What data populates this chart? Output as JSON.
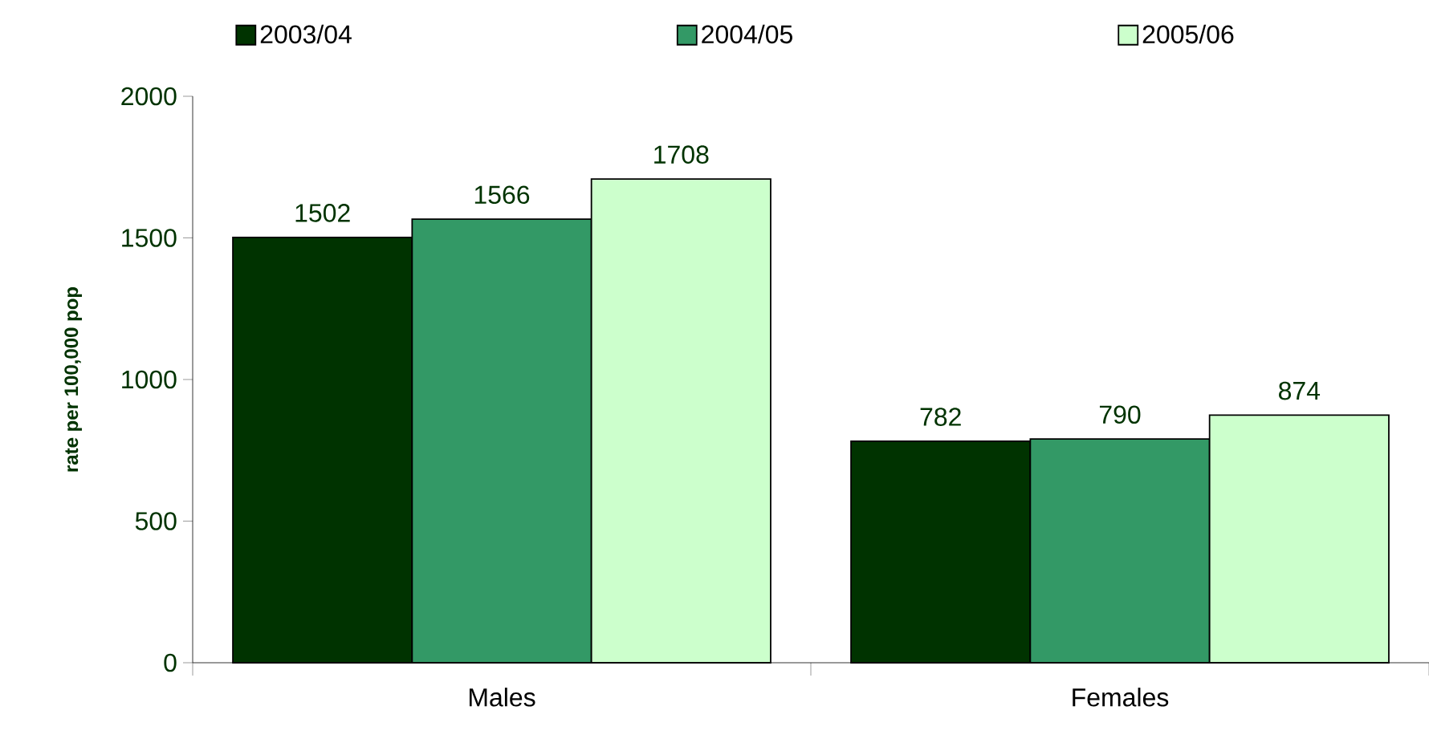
{
  "chart_data": {
    "type": "bar",
    "ylabel": "rate per 100,000 pop",
    "categories": [
      "Males",
      "Females"
    ],
    "series": [
      {
        "name": "2003/04",
        "color": "#003300",
        "values": [
          1502,
          782
        ]
      },
      {
        "name": "2004/05",
        "color": "#339966",
        "values": [
          1566,
          790
        ]
      },
      {
        "name": "2005/06",
        "color": "#ccffcc",
        "values": [
          1708,
          874
        ]
      }
    ],
    "ylim": [
      0,
      2000
    ],
    "yticks": [
      0,
      500,
      1000,
      1500,
      2000
    ],
    "legend": "top",
    "data_labels": true
  }
}
